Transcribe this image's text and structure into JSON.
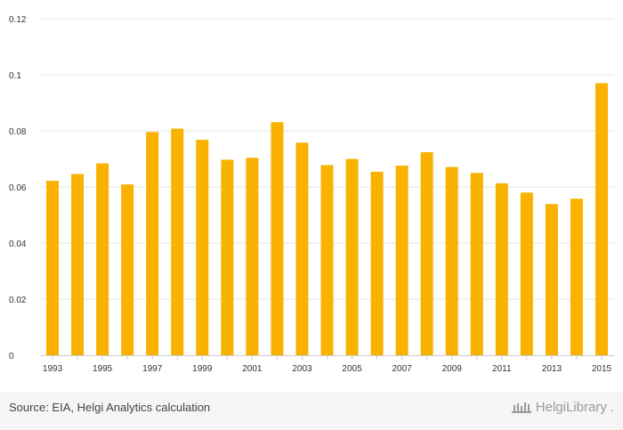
{
  "chart_data": {
    "type": "bar",
    "title": "",
    "xlabel": "",
    "ylabel": "",
    "ylim": [
      0,
      0.12
    ],
    "yticks": [
      0,
      0.02,
      0.04,
      0.06,
      0.08,
      0.1,
      0.12
    ],
    "ytick_labels": [
      "0",
      "0.02",
      "0.04",
      "0.06",
      "0.08",
      "0.1",
      "0.12"
    ],
    "categories": [
      "1993",
      "1994",
      "1995",
      "1996",
      "1997",
      "1998",
      "1999",
      "2000",
      "2001",
      "2002",
      "2003",
      "2004",
      "2005",
      "2006",
      "2007",
      "2008",
      "2009",
      "2010",
      "2011",
      "2012",
      "2013",
      "2014",
      "2015"
    ],
    "xtick_labels": [
      "1993",
      "1995",
      "1997",
      "1999",
      "2001",
      "2003",
      "2005",
      "2007",
      "2009",
      "2011",
      "2013",
      "2015"
    ],
    "values": [
      0.0622,
      0.0646,
      0.0684,
      0.0609,
      0.0796,
      0.0808,
      0.0768,
      0.0697,
      0.0704,
      0.0831,
      0.0758,
      0.0678,
      0.07,
      0.0654,
      0.0676,
      0.0724,
      0.0671,
      0.065,
      0.0613,
      0.058,
      0.0539,
      0.0558,
      0.097
    ],
    "grid": true,
    "bar_color": "#F9B200"
  },
  "footer": {
    "source": "Source: EIA, Helgi Analytics calculation",
    "brand": "HelgiLibrary",
    "brand_suffix": "."
  },
  "colors": {
    "grid": "#e6e6e6",
    "axis": "#cccccc",
    "footer_bg": "#f5f5f5"
  }
}
